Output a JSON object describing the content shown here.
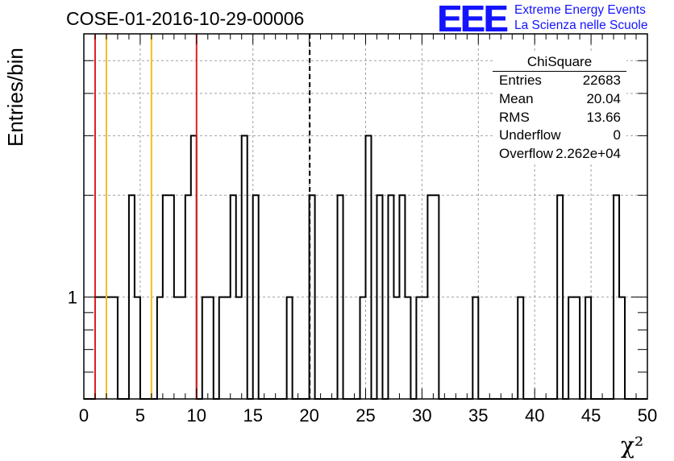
{
  "title": "COSE-01-2016-10-29-00006",
  "logo": {
    "letters": "EEE",
    "line1": "Extreme Energy Events",
    "line2": "La Scienza nelle Scuole"
  },
  "stats": {
    "name": "ChiSquare",
    "rows": [
      {
        "key": "Entries",
        "value": "22683"
      },
      {
        "key": "Mean",
        "value": "20.04"
      },
      {
        "key": "RMS",
        "value": "13.66"
      },
      {
        "key": "Underflow",
        "value": "0"
      },
      {
        "key": "Overflow",
        "value": "2.262e+04"
      }
    ]
  },
  "chart_data": {
    "type": "histogram",
    "title": "COSE-01-2016-10-29-00006",
    "xlabel": "χ²",
    "ylabel": "Entries/bin",
    "xlim": [
      0,
      50
    ],
    "ylim": [
      0.5,
      6
    ],
    "yscale": "log",
    "grid": true,
    "bin_width": 0.5,
    "x_ticks": [
      0,
      5,
      10,
      15,
      20,
      25,
      30,
      35,
      40,
      45,
      50
    ],
    "y_tick_labels": [
      {
        "value": 1,
        "label": "1"
      }
    ],
    "bins": [
      {
        "x": 1.0,
        "y": 1
      },
      {
        "x": 1.5,
        "y": 1
      },
      {
        "x": 2.0,
        "y": 1
      },
      {
        "x": 2.5,
        "y": 1
      },
      {
        "x": 4.0,
        "y": 2
      },
      {
        "x": 4.5,
        "y": 1
      },
      {
        "x": 6.5,
        "y": 1
      },
      {
        "x": 7.0,
        "y": 2
      },
      {
        "x": 7.5,
        "y": 2
      },
      {
        "x": 8.0,
        "y": 1
      },
      {
        "x": 8.5,
        "y": 1
      },
      {
        "x": 9.0,
        "y": 2
      },
      {
        "x": 9.5,
        "y": 3
      },
      {
        "x": 10.5,
        "y": 1
      },
      {
        "x": 11.0,
        "y": 1
      },
      {
        "x": 12.0,
        "y": 1
      },
      {
        "x": 12.5,
        "y": 1
      },
      {
        "x": 13.0,
        "y": 2
      },
      {
        "x": 13.5,
        "y": 1
      },
      {
        "x": 14.0,
        "y": 3
      },
      {
        "x": 15.0,
        "y": 2
      },
      {
        "x": 18.0,
        "y": 1
      },
      {
        "x": 20.0,
        "y": 2
      },
      {
        "x": 22.5,
        "y": 2
      },
      {
        "x": 24.5,
        "y": 1
      },
      {
        "x": 25.0,
        "y": 3
      },
      {
        "x": 26.0,
        "y": 2
      },
      {
        "x": 27.0,
        "y": 2
      },
      {
        "x": 27.5,
        "y": 1
      },
      {
        "x": 28.0,
        "y": 2
      },
      {
        "x": 28.5,
        "y": 1
      },
      {
        "x": 29.5,
        "y": 1
      },
      {
        "x": 30.0,
        "y": 1
      },
      {
        "x": 30.5,
        "y": 2
      },
      {
        "x": 31.0,
        "y": 2
      },
      {
        "x": 34.5,
        "y": 1
      },
      {
        "x": 38.5,
        "y": 1
      },
      {
        "x": 42.0,
        "y": 2
      },
      {
        "x": 43.0,
        "y": 1
      },
      {
        "x": 43.5,
        "y": 1
      },
      {
        "x": 44.5,
        "y": 1
      },
      {
        "x": 47.0,
        "y": 2
      },
      {
        "x": 47.5,
        "y": 1
      }
    ],
    "vertical_lines": [
      {
        "x": 1.0,
        "color": "#e02020",
        "style": "solid"
      },
      {
        "x": 2.0,
        "color": "#f0c020",
        "style": "solid"
      },
      {
        "x": 6.0,
        "color": "#f0c020",
        "style": "solid"
      },
      {
        "x": 10.0,
        "color": "#e02020",
        "style": "solid"
      },
      {
        "x": 20.04,
        "color": "#000000",
        "style": "dashed"
      }
    ]
  }
}
